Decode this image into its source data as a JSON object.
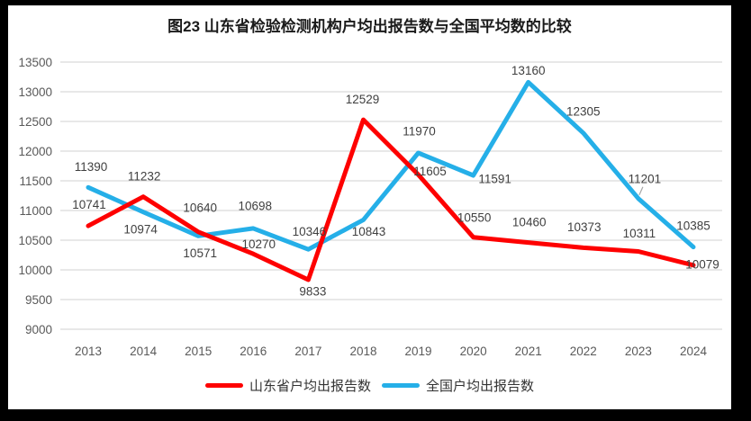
{
  "frame": {
    "border_color": "#000000",
    "panel_background": "#ffffff"
  },
  "chart_data": {
    "type": "line",
    "title": "图23  山东省检验检测机构户均出报告数与全国平均数的比较",
    "categories": [
      "2013",
      "2014",
      "2015",
      "2016",
      "2017",
      "2018",
      "2019",
      "2020",
      "2021",
      "2022",
      "2023",
      "2024"
    ],
    "series": [
      {
        "name": "山东省户均出报告数",
        "color": "#FE0000",
        "values": [
          10741,
          11232,
          10640,
          10270,
          9833,
          12529,
          11605,
          10550,
          10460,
          10373,
          10311,
          10079
        ]
      },
      {
        "name": "全国户均出报告数",
        "color": "#25AFE8",
        "values": [
          11390,
          10974,
          10571,
          10698,
          10346,
          10843,
          11970,
          11591,
          13160,
          12305,
          11201,
          10385
        ]
      }
    ],
    "y_ticks": [
      13500,
      13000,
      12500,
      12000,
      11500,
      11000,
      10500,
      10000,
      9500,
      9000
    ],
    "ylim": [
      9000,
      13500
    ],
    "grid": true,
    "data_labels": true,
    "legend_position": "bottom",
    "colors": {
      "gridline": "#D9D9D9",
      "tick_label": "#595959",
      "data_label": "#404040",
      "leader_line": "#A6A6A6"
    }
  }
}
